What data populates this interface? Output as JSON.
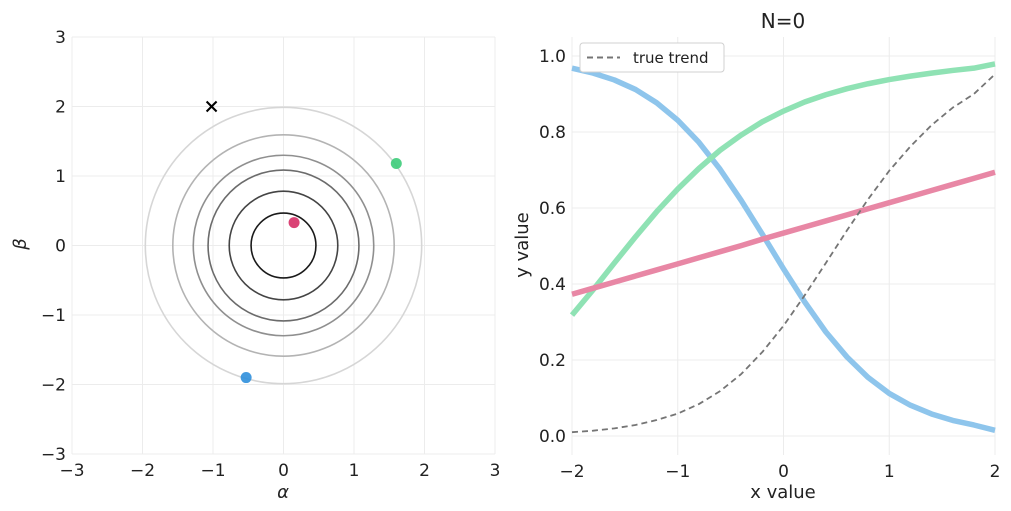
{
  "chart_data": [
    {
      "type": "scatter",
      "title": "",
      "xlabel": "α",
      "ylabel": "β",
      "xlim": [
        -3,
        3
      ],
      "ylim": [
        -3,
        3
      ],
      "grid": true,
      "x_ticks": [
        -3,
        -2,
        -1,
        0,
        1,
        2,
        3
      ],
      "y_ticks": [
        -3,
        -2,
        -1,
        0,
        1,
        2,
        3
      ],
      "x_tick_labels": [
        "−3",
        "−2",
        "−1",
        "0",
        "1",
        "2",
        "3"
      ],
      "y_tick_labels": [
        "−3",
        "−2",
        "−1",
        "0",
        "1",
        "2",
        "3"
      ],
      "contours": [
        {
          "radius": 0.46,
          "color": "#1a1a1a"
        },
        {
          "radius": 0.77,
          "color": "#444444"
        },
        {
          "radius": 1.07,
          "color": "#6b6b6b"
        },
        {
          "radius": 1.28,
          "color": "#8f8f8f"
        },
        {
          "radius": 1.57,
          "color": "#b3b3b3"
        },
        {
          "radius": 1.96,
          "color": "#d6d6d6"
        }
      ],
      "points": [
        {
          "x": 0.15,
          "y": 0.33,
          "color": "#d62f66",
          "marker": "circle"
        },
        {
          "x": 1.6,
          "y": 1.18,
          "color": "#3dcc7a",
          "marker": "circle"
        },
        {
          "x": -0.53,
          "y": -1.9,
          "color": "#2f8fdc",
          "marker": "circle"
        },
        {
          "x": -1.02,
          "y": 2.0,
          "color": "#000000",
          "marker": "x"
        }
      ]
    },
    {
      "type": "line",
      "title": "N=0",
      "xlabel": "x value",
      "ylabel": "y value",
      "xlim": [
        -2,
        2
      ],
      "ylim": [
        -0.05,
        1.05
      ],
      "grid": true,
      "legend_position": "top-left",
      "x_ticks": [
        -2,
        -1,
        0,
        1,
        2
      ],
      "y_ticks": [
        0.0,
        0.2,
        0.4,
        0.6,
        0.8,
        1.0
      ],
      "x_tick_labels": [
        "−2",
        "−1",
        "0",
        "1",
        "2"
      ],
      "y_tick_labels": [
        "0.0",
        "0.2",
        "0.4",
        "0.6",
        "0.8",
        "1.0"
      ],
      "x": [
        -2.0,
        -1.8,
        -1.6,
        -1.4,
        -1.2,
        -1.0,
        -0.8,
        -0.6,
        -0.4,
        -0.2,
        0.0,
        0.2,
        0.4,
        0.6,
        0.8,
        1.0,
        1.2,
        1.4,
        1.6,
        1.8,
        2.0
      ],
      "series": [
        {
          "name": "true trend",
          "color": "#757575",
          "style": "dashed",
          "in_legend": true,
          "values": [
            0.01,
            0.014,
            0.02,
            0.029,
            0.042,
            0.059,
            0.084,
            0.118,
            0.163,
            0.221,
            0.29,
            0.37,
            0.455,
            0.541,
            0.623,
            0.698,
            0.762,
            0.818,
            0.864,
            0.9,
            0.952
          ]
        },
        {
          "name": "",
          "color": "#8ec5ec",
          "style": "solid",
          "in_legend": false,
          "values": [
            0.968,
            0.955,
            0.937,
            0.912,
            0.877,
            0.831,
            0.773,
            0.702,
            0.62,
            0.531,
            0.44,
            0.353,
            0.274,
            0.208,
            0.154,
            0.112,
            0.081,
            0.058,
            0.041,
            0.029,
            0.015
          ]
        },
        {
          "name": "",
          "color": "#8fe2b4",
          "style": "solid",
          "in_legend": false,
          "values": [
            0.318,
            0.385,
            0.455,
            0.524,
            0.59,
            0.65,
            0.704,
            0.752,
            0.792,
            0.827,
            0.855,
            0.879,
            0.898,
            0.914,
            0.927,
            0.938,
            0.947,
            0.955,
            0.962,
            0.968,
            0.979
          ]
        },
        {
          "name": "",
          "color": "#e887a5",
          "style": "solid",
          "in_legend": false,
          "values": [
            0.373,
            0.389,
            0.405,
            0.421,
            0.437,
            0.453,
            0.469,
            0.485,
            0.501,
            0.518,
            0.534,
            0.55,
            0.566,
            0.582,
            0.598,
            0.614,
            0.63,
            0.646,
            0.662,
            0.678,
            0.694
          ]
        }
      ]
    }
  ]
}
